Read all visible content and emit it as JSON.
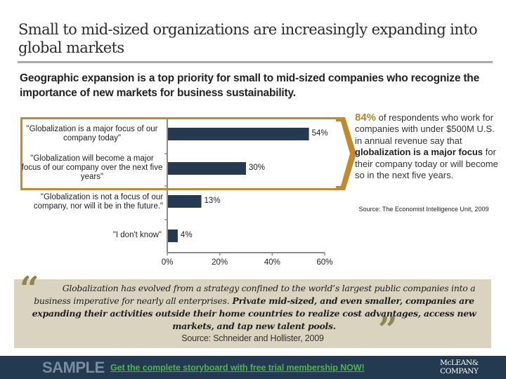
{
  "header": {
    "title": "Small to mid-sized organizations are increasingly expanding into global markets",
    "subtitle": "Geographic expansion is a top priority for small to mid-sized companies who recognize the importance of new markets for business sustainability."
  },
  "colors": {
    "bar": "#243a50",
    "highlight": "#c28a2c",
    "axis": "#8c8c8c",
    "quote_bg": "#d9d3bf",
    "footer_bg": "#243a50",
    "cta": "#4fb24a"
  },
  "chart_data": {
    "type": "bar",
    "orientation": "horizontal",
    "categories": [
      "\"Globalization is a major focus of our company today\"",
      "\"Globalization will become a major focus of our company over the next five years\"",
      "\"Globalization is not a focus of our company, nor will it be in the future.\"",
      "\"I don't know\""
    ],
    "values": [
      54,
      30,
      13,
      4
    ],
    "value_labels": [
      "54%",
      "30%",
      "13%",
      "4%"
    ],
    "xlim": [
      0,
      60
    ],
    "xticks": [
      0,
      20,
      40,
      60
    ],
    "xtick_labels": [
      "0%",
      "20%",
      "40%",
      "60%"
    ],
    "title": "",
    "xlabel": "",
    "ylabel": "",
    "grid": false,
    "highlighted_categories": [
      0,
      1
    ]
  },
  "side_note": {
    "highlight_value": "84%",
    "text_before": " of respondents who work for companies with under $500M U.S. in annual revenue say that ",
    "bold_text": "globalization is a major focus",
    "text_after": " for their company today or will become so in the next five years.",
    "source": "Source: The Economist Intelligence Unit, 2009"
  },
  "quote": {
    "part1": "Globalization has evolved from a strategy confined to the world’s largest public companies into a business imperative for nearly all enterprises.",
    "part2": " Private mid-sized, and even smaller, companies are expanding their activities outside their home countries to realize cost advantages, access new markets, and tap new talent pools.",
    "open_mark": "“",
    "close_mark": "”",
    "source": "Source: Schneider and Hollister, 2009"
  },
  "footer": {
    "sample_label": "SAMPLE",
    "cta_text": "Get the complete storyboard with free trial membership NOW!",
    "logo_line1": "McLEAN&",
    "logo_line2": "COMPANY"
  }
}
